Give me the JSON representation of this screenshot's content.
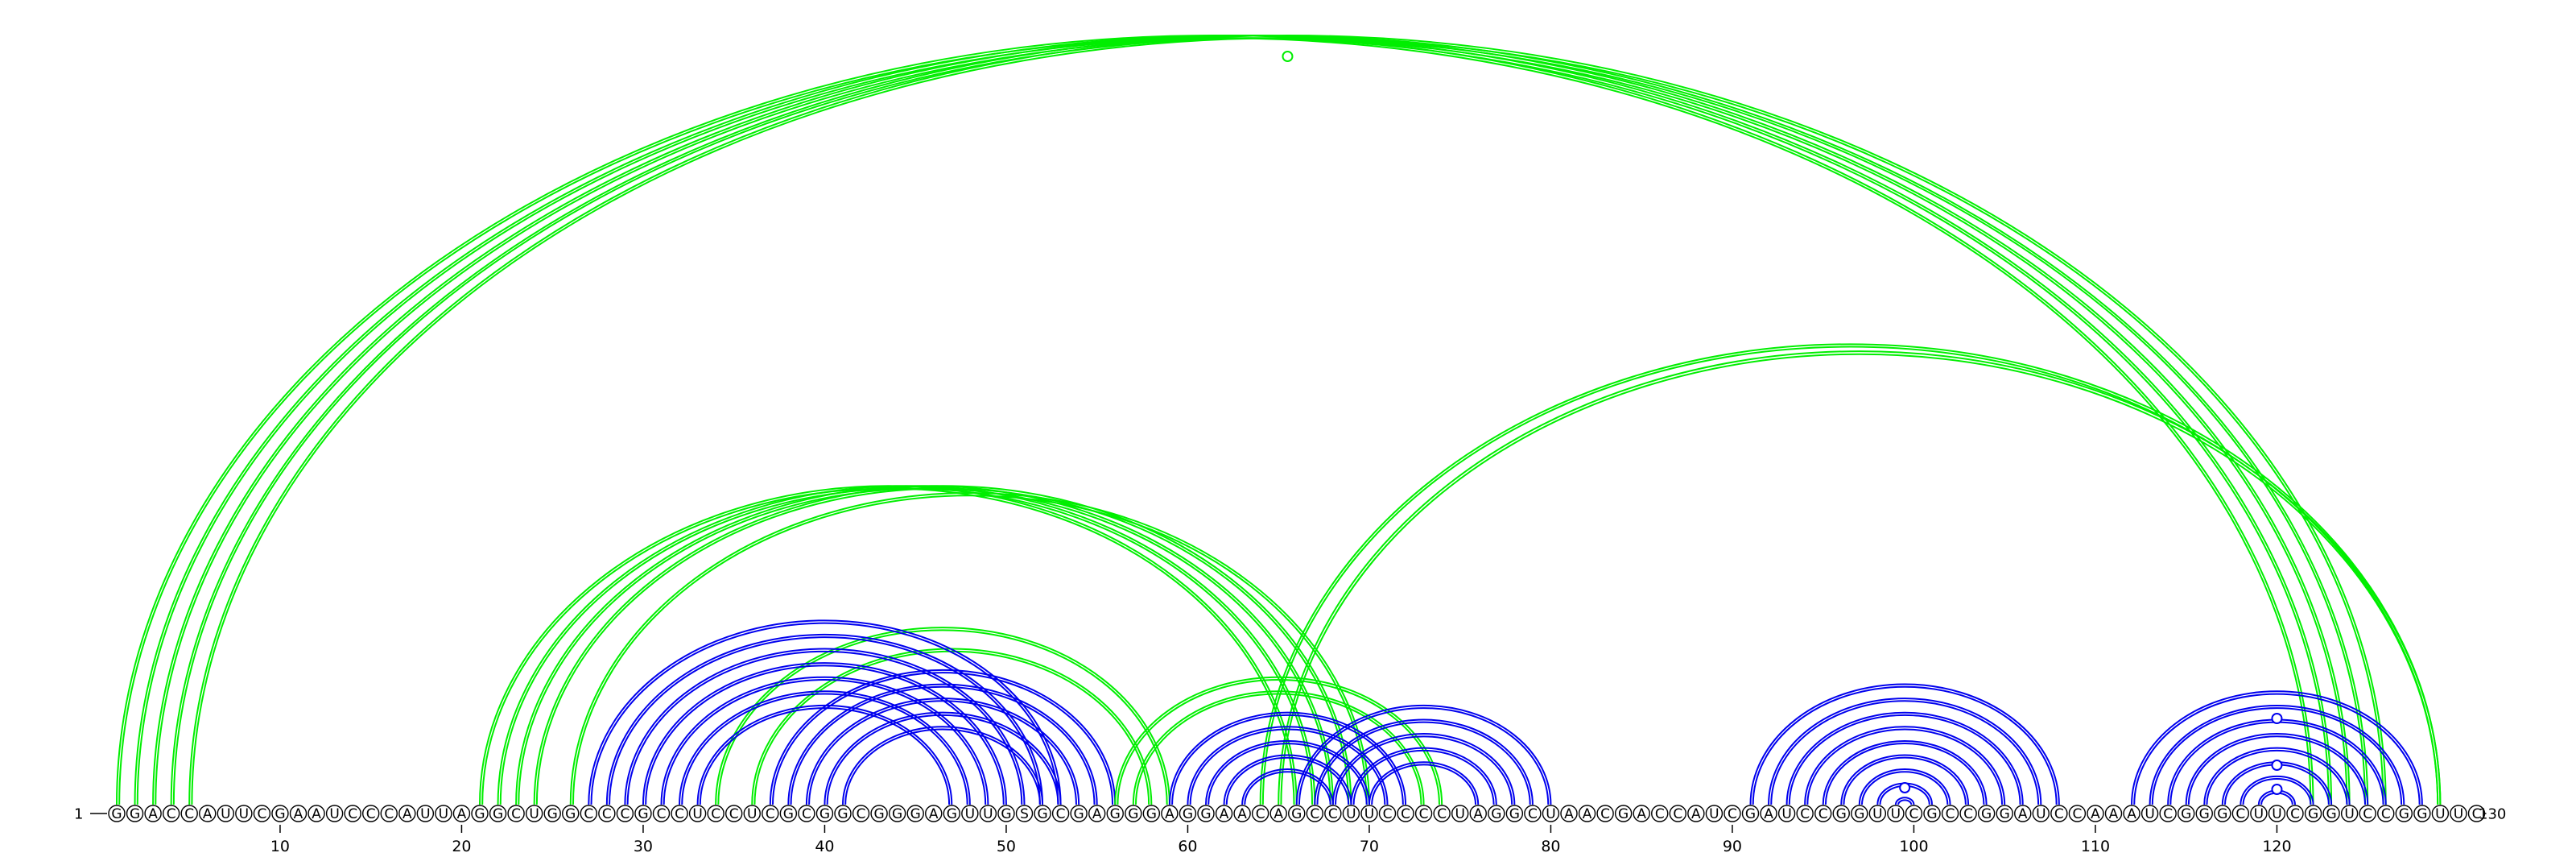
{
  "sequence": {
    "text": "GGACCAUUCGAAUCCCAUUAGGCUGGCCCGCCUCCUCGCGGCGGGAGUUGSGCGAGGGAGGAACAGCCUUCCCCUAGGCUAACGACCAUCGAUCCGGUUCGCCGGAUCCAAAUCGGGCUUCGGUCCGGUUC",
    "start_label": "1",
    "end_label": "130",
    "tick_labels": [
      "10",
      "20",
      "30",
      "40",
      "50",
      "60",
      "70",
      "80",
      "90",
      "100",
      "110",
      "120"
    ]
  },
  "colors": {
    "outer_arcs": "#00ee00",
    "inner_arcs": "#0000ee",
    "nucleotide_outline": "#000000",
    "background": "#ffffff"
  },
  "arc_groups": [
    {
      "color": "outer_arcs",
      "pairs": [
        [
          1,
          122
        ],
        [
          2,
          123
        ],
        [
          3,
          124
        ],
        [
          4,
          125
        ],
        [
          5,
          126
        ]
      ]
    },
    {
      "color": "outer_arcs",
      "pairs": [
        [
          64,
          129
        ],
        [
          65,
          129
        ]
      ]
    },
    {
      "color": "outer_arcs",
      "pairs": [
        [
          21,
          66
        ],
        [
          22,
          67
        ],
        [
          23,
          68
        ],
        [
          24,
          69
        ],
        [
          26,
          70
        ]
      ]
    },
    {
      "color": "outer_arcs",
      "pairs": [
        [
          34,
          59
        ],
        [
          36,
          58
        ]
      ]
    },
    {
      "color": "inner_arcs",
      "pairs": [
        [
          27,
          53
        ],
        [
          28,
          52
        ],
        [
          29,
          51
        ],
        [
          30,
          50
        ],
        [
          31,
          49
        ],
        [
          32,
          48
        ],
        [
          33,
          47
        ],
        [
          37,
          56
        ],
        [
          38,
          55
        ],
        [
          39,
          54
        ],
        [
          40,
          53
        ],
        [
          41,
          52
        ]
      ]
    },
    {
      "color": "outer_arcs",
      "pairs": [
        [
          56,
          74
        ],
        [
          57,
          73
        ]
      ]
    },
    {
      "color": "inner_arcs",
      "pairs": [
        [
          59,
          72
        ],
        [
          60,
          71
        ],
        [
          61,
          70
        ],
        [
          62,
          69
        ],
        [
          63,
          68
        ],
        [
          66,
          80
        ],
        [
          67,
          79
        ],
        [
          68,
          78
        ],
        [
          69,
          77
        ],
        [
          70,
          76
        ]
      ]
    },
    {
      "color": "inner_arcs",
      "pairs": [
        [
          91,
          108
        ],
        [
          92,
          107
        ],
        [
          93,
          106
        ],
        [
          94,
          105
        ],
        [
          95,
          104
        ],
        [
          96,
          103
        ],
        [
          97,
          102
        ],
        [
          98,
          101
        ],
        [
          99,
          100
        ]
      ]
    },
    {
      "color": "inner_arcs",
      "pairs": [
        [
          112,
          128
        ],
        [
          113,
          127
        ],
        [
          114,
          126
        ],
        [
          115,
          125
        ],
        [
          116,
          124
        ],
        [
          117,
          123
        ],
        [
          118,
          122
        ],
        [
          119,
          121
        ]
      ]
    }
  ],
  "markers": [
    {
      "position": 65.5,
      "group": "outer_arcs"
    },
    {
      "position": 99.5,
      "group": "inner_arcs"
    },
    {
      "position": 120,
      "group": "inner_arcs"
    },
    {
      "position": 120,
      "group": "inner_arcs"
    },
    {
      "position": 120,
      "group": "inner_arcs"
    }
  ]
}
